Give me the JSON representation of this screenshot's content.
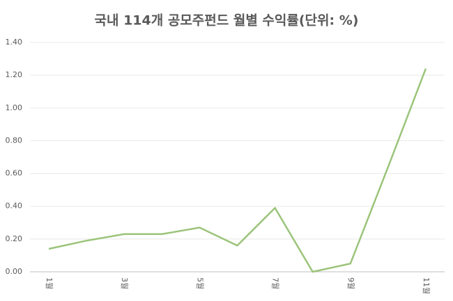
{
  "chart_data": {
    "type": "line",
    "title": "국내 114개 공모주펀드 월별 수익률(단위: %)",
    "categories": [
      "1월",
      null,
      "3월",
      null,
      "5월",
      null,
      "7월",
      null,
      "9월",
      null,
      "11월"
    ],
    "values": [
      0.14,
      0.19,
      0.23,
      0.23,
      0.27,
      0.16,
      0.39,
      0.0,
      0.05,
      0.64,
      1.24
    ],
    "color": "#9bc47a",
    "ylim": [
      0,
      1.4
    ],
    "yticks": [
      {
        "value": 0,
        "label": "0.00"
      },
      {
        "value": 0.2,
        "label": "0.20"
      },
      {
        "value": 0.4,
        "label": "0.40"
      },
      {
        "value": 0.6,
        "label": "0.60"
      },
      {
        "value": 0.8,
        "label": "0.80"
      },
      {
        "value": 1.0,
        "label": "1.00"
      },
      {
        "value": 1.2,
        "label": "1.20"
      },
      {
        "value": 1.4,
        "label": "1.40"
      }
    ],
    "grid": true
  }
}
